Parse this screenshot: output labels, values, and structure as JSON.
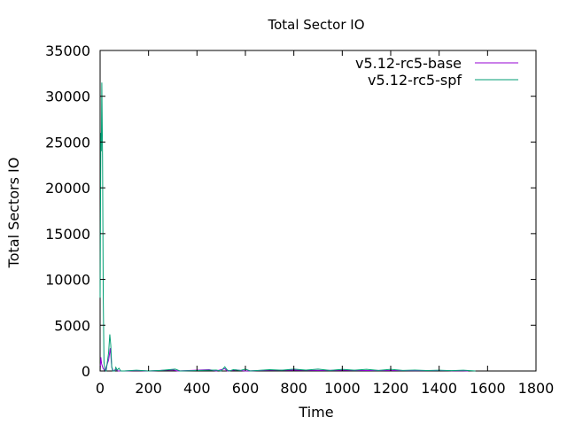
{
  "chart_data": {
    "type": "line",
    "title": "Total Sector IO",
    "xlabel": "Time",
    "ylabel": "Total Sectors IO",
    "xlim": [
      0,
      1800
    ],
    "ylim": [
      0,
      35000
    ],
    "xticks": [
      "0",
      "200",
      "400",
      "600",
      "800",
      "1000",
      "1200",
      "1400",
      "1600",
      "1800"
    ],
    "yticks": [
      "0",
      "5000",
      "10000",
      "15000",
      "20000",
      "25000",
      "30000",
      "35000"
    ],
    "legend_position": "top-right",
    "grid": false,
    "series": [
      {
        "name": "v5.12-rc5-base",
        "color": "#9400d3",
        "points": [
          [
            0,
            0
          ],
          [
            3,
            1500
          ],
          [
            6,
            800
          ],
          [
            12,
            300
          ],
          [
            20,
            0
          ],
          [
            35,
            1200
          ],
          [
            42,
            2500
          ],
          [
            48,
            400
          ],
          [
            55,
            0
          ],
          [
            65,
            150
          ],
          [
            75,
            0
          ],
          [
            100,
            0
          ],
          [
            150,
            50
          ],
          [
            200,
            0
          ],
          [
            300,
            120
          ],
          [
            320,
            0
          ],
          [
            450,
            150
          ],
          [
            480,
            0
          ],
          [
            515,
            250
          ],
          [
            525,
            0
          ],
          [
            560,
            120
          ],
          [
            600,
            0
          ],
          [
            700,
            80
          ],
          [
            800,
            100
          ],
          [
            900,
            60
          ],
          [
            1000,
            80
          ],
          [
            1100,
            50
          ],
          [
            1200,
            60
          ],
          [
            1300,
            40
          ],
          [
            1400,
            50
          ],
          [
            1450,
            30
          ],
          [
            1500,
            20
          ],
          [
            1520,
            0
          ]
        ]
      },
      {
        "name": "v5.12-rc5-spf",
        "color": "#009e73",
        "points": [
          [
            0,
            8000
          ],
          [
            3,
            26000
          ],
          [
            5,
            24000
          ],
          [
            7,
            31500
          ],
          [
            10,
            23500
          ],
          [
            13,
            8000
          ],
          [
            16,
            1000
          ],
          [
            20,
            0
          ],
          [
            25,
            0
          ],
          [
            35,
            2000
          ],
          [
            40,
            4000
          ],
          [
            44,
            2800
          ],
          [
            48,
            500
          ],
          [
            52,
            0
          ],
          [
            60,
            0
          ],
          [
            65,
            400
          ],
          [
            70,
            100
          ],
          [
            78,
            300
          ],
          [
            85,
            0
          ],
          [
            100,
            0
          ],
          [
            150,
            80
          ],
          [
            200,
            0
          ],
          [
            250,
            60
          ],
          [
            310,
            200
          ],
          [
            330,
            0
          ],
          [
            400,
            50
          ],
          [
            450,
            80
          ],
          [
            480,
            100
          ],
          [
            500,
            0
          ],
          [
            515,
            450
          ],
          [
            525,
            100
          ],
          [
            535,
            0
          ],
          [
            550,
            150
          ],
          [
            580,
            60
          ],
          [
            600,
            200
          ],
          [
            620,
            0
          ],
          [
            700,
            150
          ],
          [
            750,
            80
          ],
          [
            800,
            200
          ],
          [
            850,
            100
          ],
          [
            900,
            200
          ],
          [
            950,
            60
          ],
          [
            1000,
            180
          ],
          [
            1050,
            80
          ],
          [
            1100,
            180
          ],
          [
            1150,
            60
          ],
          [
            1200,
            180
          ],
          [
            1250,
            60
          ],
          [
            1300,
            100
          ],
          [
            1350,
            50
          ],
          [
            1400,
            80
          ],
          [
            1450,
            40
          ],
          [
            1500,
            80
          ],
          [
            1550,
            0
          ]
        ]
      }
    ]
  }
}
